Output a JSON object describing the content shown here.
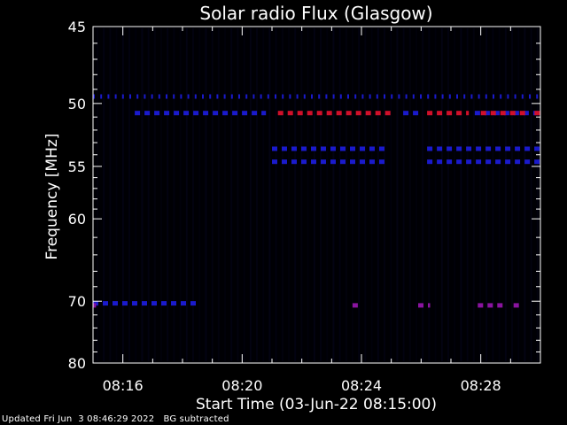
{
  "chart_data": {
    "type": "heatmap",
    "title": "Solar radio Flux (Glasgow)",
    "xlabel": "Start Time (03-Jun-22 08:15:00)",
    "ylabel": "Frequency [MHz]",
    "x_start": "08:15:00",
    "x_end": "08:30:00",
    "x_ticks": [
      {
        "label": "08:16",
        "minutes": 1
      },
      {
        "label": "08:20",
        "minutes": 5
      },
      {
        "label": "08:24",
        "minutes": 9
      },
      {
        "label": "08:28",
        "minutes": 13
      }
    ],
    "y_scale": "reciprocal",
    "ylim": [
      45,
      80
    ],
    "y_ticks": [
      45,
      50,
      55,
      60,
      70,
      80
    ],
    "y_minor_ticks": [
      46,
      47,
      48,
      49,
      51,
      52,
      53,
      54,
      56,
      57,
      58,
      59,
      62,
      64,
      66,
      68,
      72,
      74,
      76,
      78
    ],
    "grid": false,
    "colors": {
      "background": "#000000",
      "low_intensity": "#1a1acc",
      "high_intensity": "#d0102a",
      "axes": "#ffffff"
    },
    "series": [
      {
        "frequency_mhz": 49.5,
        "level": "low",
        "minute_ranges": [
          [
            0.0,
            15.0
          ]
        ]
      },
      {
        "frequency_mhz": 50.7,
        "level": "low",
        "minute_ranges": [
          [
            1.4,
            5.8
          ],
          [
            10.4,
            11.0
          ],
          [
            12.8,
            15.0
          ]
        ]
      },
      {
        "frequency_mhz": 50.7,
        "level": "high",
        "minute_ranges": [
          [
            6.2,
            10.0
          ],
          [
            11.2,
            12.6
          ],
          [
            13.0,
            14.6
          ],
          [
            14.8,
            15.0
          ]
        ]
      },
      {
        "frequency_mhz": 53.5,
        "level": "low",
        "minute_ranges": [
          [
            6.0,
            9.8
          ],
          [
            11.2,
            15.0
          ]
        ]
      },
      {
        "frequency_mhz": 54.6,
        "level": "low",
        "minute_ranges": [
          [
            6.0,
            9.8
          ],
          [
            11.2,
            15.0
          ]
        ]
      },
      {
        "frequency_mhz": 70.3,
        "level": "low",
        "minute_ranges": [
          [
            0.0,
            3.6
          ]
        ]
      },
      {
        "frequency_mhz": 70.6,
        "level": "mixed",
        "minute_ranges": [
          [
            0.0,
            0.1
          ],
          [
            8.7,
            9.0
          ],
          [
            10.9,
            11.3
          ],
          [
            12.9,
            13.9
          ],
          [
            14.1,
            14.3
          ]
        ]
      }
    ]
  },
  "footer": {
    "updated": "Updated Fri Jun  3 08:46:29 2022",
    "note": "BG subtracted"
  }
}
